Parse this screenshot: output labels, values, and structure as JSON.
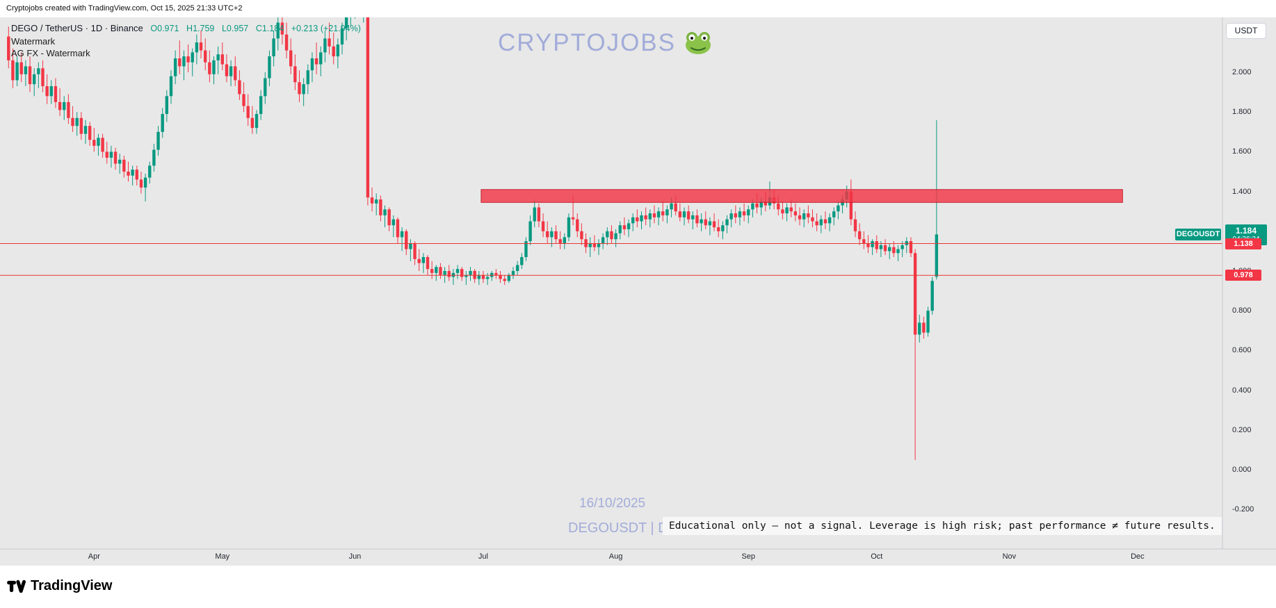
{
  "page": {
    "top_caption": "Cryptojobs created with TradingView.com, Oct 15, 2025 21:33 UTC+2",
    "bottom_brand": "TradingView"
  },
  "legend": {
    "symbol": "DEGO / TetherUS · 1D · Binance",
    "open": "O0.971",
    "high": "H1.759",
    "low": "L0.957",
    "close": "C1.184",
    "change": "+0.213 (+21.94%)"
  },
  "watermarks": {
    "line1": "Watermark",
    "line2": "AG FX - Watermark",
    "center_title": "CRYPTOJOBS",
    "date": "16/10/2025",
    "symbol_label": "DEGOUSDT | D"
  },
  "axis_button": {
    "label": "USDT"
  },
  "badges": {
    "symbol": "DEGOUSDT",
    "last_price": "1.184",
    "countdown": "04:26:24",
    "level1": "1.138",
    "level2": "0.978"
  },
  "banner": {
    "text": "Educational only — not a signal. Leverage is high risk; past performance ≠ future results."
  },
  "colors": {
    "up": "#089981",
    "down": "#f23645",
    "level_line": "#e53935",
    "zone_fill": "rgba(242,54,69,0.82)",
    "zone_border": "rgba(190,25,38,0.9)",
    "watermark": "rgba(103,122,204,0.55)",
    "badge_green": "#089981",
    "badge_red": "#f23645",
    "chart_bg": "#e8e8e8"
  },
  "chart_data": {
    "type": "candlestick",
    "title": "DEGO / TetherUS · 1D · Binance",
    "symbol": "DEGOUSDT",
    "exchange": "Binance",
    "interval": "1D",
    "quote_currency": "USDT",
    "start_date": "2025-03-12",
    "last": {
      "open": 0.971,
      "high": 1.759,
      "low": 0.957,
      "close": 1.184,
      "change": "+0.213",
      "change_pct": "+21.94%"
    },
    "y_axis": {
      "range": [
        -0.32,
        2.27
      ],
      "ticks": [
        {
          "v": 2.0,
          "label": "2.000"
        },
        {
          "v": 1.8,
          "label": "1.800"
        },
        {
          "v": 1.6,
          "label": "1.600"
        },
        {
          "v": 1.4,
          "label": "1.400"
        },
        {
          "v": 1.2,
          "label": "1.200"
        },
        {
          "v": 1.0,
          "label": "1.000"
        },
        {
          "v": 0.8,
          "label": "0.800"
        },
        {
          "v": 0.6,
          "label": "0.600"
        },
        {
          "v": 0.4,
          "label": "0.400"
        },
        {
          "v": 0.2,
          "label": "0.200"
        },
        {
          "v": 0.0,
          "label": "0.000"
        },
        {
          "v": -0.2,
          "label": "-0.200"
        }
      ]
    },
    "x_axis": {
      "labels": [
        {
          "label": "Apr",
          "day": 20
        },
        {
          "label": "May",
          "day": 50
        },
        {
          "label": "Jun",
          "day": 81
        },
        {
          "label": "Jul",
          "day": 111
        },
        {
          "label": "Aug",
          "day": 142
        },
        {
          "label": "Sep",
          "day": 173
        },
        {
          "label": "Oct",
          "day": 203
        },
        {
          "label": "Nov",
          "day": 234
        },
        {
          "label": "Dec",
          "day": 264
        }
      ]
    },
    "levels": [
      {
        "label": "1.138",
        "price": 1.138
      },
      {
        "label": "0.978",
        "price": 0.978
      }
    ],
    "zone": {
      "top": 1.41,
      "bottom": 1.345,
      "from_day": 111,
      "to_day": 261
    },
    "candles": [
      [
        2.18,
        2.23,
        2.02,
        2.06
      ],
      [
        2.06,
        2.12,
        1.92,
        1.96
      ],
      [
        1.96,
        2.08,
        1.93,
        2.05
      ],
      [
        2.05,
        2.1,
        1.95,
        1.99
      ],
      [
        1.99,
        2.06,
        1.93,
        2.03
      ],
      [
        2.03,
        2.08,
        1.9,
        1.94
      ],
      [
        1.94,
        2.02,
        1.88,
        1.99
      ],
      [
        1.99,
        2.05,
        1.92,
        2.02
      ],
      [
        2.02,
        2.06,
        1.9,
        1.93
      ],
      [
        1.93,
        1.99,
        1.84,
        1.88
      ],
      [
        1.88,
        1.96,
        1.84,
        1.93
      ],
      [
        1.93,
        1.97,
        1.82,
        1.85
      ],
      [
        1.85,
        1.92,
        1.78,
        1.81
      ],
      [
        1.81,
        1.88,
        1.76,
        1.85
      ],
      [
        1.85,
        1.89,
        1.74,
        1.77
      ],
      [
        1.77,
        1.83,
        1.7,
        1.73
      ],
      [
        1.73,
        1.8,
        1.68,
        1.77
      ],
      [
        1.77,
        1.8,
        1.66,
        1.69
      ],
      [
        1.69,
        1.76,
        1.64,
        1.73
      ],
      [
        1.73,
        1.75,
        1.63,
        1.66
      ],
      [
        1.66,
        1.72,
        1.6,
        1.63
      ],
      [
        1.63,
        1.69,
        1.58,
        1.67
      ],
      [
        1.67,
        1.69,
        1.57,
        1.6
      ],
      [
        1.6,
        1.65,
        1.54,
        1.57
      ],
      [
        1.57,
        1.63,
        1.52,
        1.6
      ],
      [
        1.6,
        1.62,
        1.51,
        1.54
      ],
      [
        1.54,
        1.59,
        1.49,
        1.56
      ],
      [
        1.56,
        1.58,
        1.47,
        1.5
      ],
      [
        1.5,
        1.55,
        1.45,
        1.48
      ],
      [
        1.48,
        1.53,
        1.43,
        1.51
      ],
      [
        1.51,
        1.53,
        1.43,
        1.46
      ],
      [
        1.46,
        1.5,
        1.39,
        1.42
      ],
      [
        1.42,
        1.49,
        1.35,
        1.47
      ],
      [
        1.47,
        1.55,
        1.44,
        1.53
      ],
      [
        1.53,
        1.64,
        1.5,
        1.61
      ],
      [
        1.61,
        1.73,
        1.58,
        1.7
      ],
      [
        1.7,
        1.82,
        1.67,
        1.79
      ],
      [
        1.79,
        1.91,
        1.75,
        1.88
      ],
      [
        1.88,
        2.01,
        1.84,
        1.98
      ],
      [
        1.98,
        2.11,
        1.94,
        2.07
      ],
      [
        2.07,
        2.16,
        1.99,
        2.03
      ],
      [
        2.03,
        2.11,
        1.96,
        2.08
      ],
      [
        2.08,
        2.14,
        2.0,
        2.05
      ],
      [
        2.05,
        2.12,
        1.98,
        2.1
      ],
      [
        2.1,
        2.19,
        2.04,
        2.15
      ],
      [
        2.15,
        2.21,
        2.07,
        2.11
      ],
      [
        2.11,
        2.17,
        2.01,
        2.05
      ],
      [
        2.05,
        2.11,
        1.95,
        1.99
      ],
      [
        1.99,
        2.08,
        1.94,
        2.06
      ],
      [
        2.06,
        2.13,
        1.99,
        2.09
      ],
      [
        2.09,
        2.15,
        2.01,
        2.04
      ],
      [
        2.04,
        2.09,
        1.95,
        1.98
      ],
      [
        1.98,
        2.06,
        1.93,
        2.03
      ],
      [
        2.03,
        2.08,
        1.93,
        1.96
      ],
      [
        1.96,
        2.01,
        1.86,
        1.89
      ],
      [
        1.89,
        1.95,
        1.8,
        1.83
      ],
      [
        1.83,
        1.89,
        1.73,
        1.77
      ],
      [
        1.77,
        1.83,
        1.69,
        1.72
      ],
      [
        1.72,
        1.81,
        1.69,
        1.79
      ],
      [
        1.79,
        1.91,
        1.76,
        1.88
      ],
      [
        1.88,
        2.0,
        1.84,
        1.97
      ],
      [
        1.97,
        2.11,
        1.93,
        2.08
      ],
      [
        2.08,
        2.21,
        2.03,
        2.17
      ],
      [
        2.17,
        2.29,
        2.11,
        2.25
      ],
      [
        2.25,
        2.32,
        2.14,
        2.19
      ],
      [
        2.19,
        2.25,
        2.07,
        2.11
      ],
      [
        2.11,
        2.17,
        1.99,
        2.03
      ],
      [
        2.03,
        2.09,
        1.91,
        1.95
      ],
      [
        1.95,
        2.01,
        1.85,
        1.89
      ],
      [
        1.89,
        1.97,
        1.83,
        1.94
      ],
      [
        1.94,
        2.04,
        1.89,
        2.01
      ],
      [
        2.01,
        2.1,
        1.95,
        2.07
      ],
      [
        2.07,
        2.15,
        1.99,
        2.04
      ],
      [
        2.04,
        2.13,
        1.98,
        2.1
      ],
      [
        2.1,
        2.21,
        2.05,
        2.17
      ],
      [
        2.17,
        2.25,
        2.09,
        2.13
      ],
      [
        2.13,
        2.2,
        2.04,
        2.08
      ],
      [
        2.08,
        2.17,
        2.02,
        2.14
      ],
      [
        2.14,
        2.25,
        2.09,
        2.22
      ],
      [
        2.22,
        2.32,
        2.16,
        2.29
      ],
      [
        2.29,
        2.39,
        2.23,
        2.35
      ],
      [
        2.35,
        2.43,
        2.27,
        2.39
      ],
      [
        2.39,
        2.45,
        2.29,
        2.33
      ],
      [
        2.33,
        2.41,
        2.25,
        2.37
      ],
      [
        2.37,
        2.49,
        1.33,
        1.37
      ],
      [
        1.37,
        1.42,
        1.3,
        1.34
      ],
      [
        1.34,
        1.39,
        1.28,
        1.36
      ],
      [
        1.36,
        1.38,
        1.25,
        1.28
      ],
      [
        1.28,
        1.33,
        1.22,
        1.31
      ],
      [
        1.31,
        1.32,
        1.2,
        1.23
      ],
      [
        1.23,
        1.28,
        1.17,
        1.26
      ],
      [
        1.26,
        1.27,
        1.14,
        1.17
      ],
      [
        1.17,
        1.22,
        1.1,
        1.2
      ],
      [
        1.2,
        1.21,
        1.08,
        1.11
      ],
      [
        1.11,
        1.16,
        1.05,
        1.14
      ],
      [
        1.14,
        1.15,
        1.03,
        1.06
      ],
      [
        1.06,
        1.11,
        1.0,
        1.04
      ],
      [
        1.04,
        1.09,
        0.99,
        1.07
      ],
      [
        1.07,
        1.08,
        0.98,
        1.01
      ],
      [
        1.01,
        1.05,
        0.96,
        0.99
      ],
      [
        0.99,
        1.03,
        0.95,
        1.02
      ],
      [
        1.02,
        1.04,
        0.96,
        0.98
      ],
      [
        0.98,
        1.02,
        0.94,
        1.0
      ],
      [
        1.0,
        1.03,
        0.95,
        0.97
      ],
      [
        0.97,
        1.01,
        0.93,
        0.99
      ],
      [
        0.99,
        1.03,
        0.96,
        1.01
      ],
      [
        1.01,
        1.02,
        0.95,
        0.97
      ],
      [
        0.97,
        1.0,
        0.93,
        0.98
      ],
      [
        0.98,
        1.02,
        0.95,
        1.0
      ],
      [
        1.0,
        1.01,
        0.94,
        0.96
      ],
      [
        0.96,
        1.0,
        0.93,
        0.98
      ],
      [
        0.98,
        1.0,
        0.94,
        0.96
      ],
      [
        0.96,
        0.99,
        0.93,
        0.97
      ],
      [
        0.97,
        1.0,
        0.95,
        0.99
      ],
      [
        0.99,
        1.01,
        0.96,
        0.98
      ],
      [
        0.98,
        1.0,
        0.94,
        0.96
      ],
      [
        0.96,
        0.98,
        0.93,
        0.95
      ],
      [
        0.95,
        0.99,
        0.94,
        0.98
      ],
      [
        0.98,
        1.02,
        0.96,
        1.0
      ],
      [
        1.0,
        1.05,
        0.98,
        1.03
      ],
      [
        1.03,
        1.09,
        1.01,
        1.07
      ],
      [
        1.07,
        1.17,
        1.05,
        1.15
      ],
      [
        1.15,
        1.28,
        1.13,
        1.25
      ],
      [
        1.25,
        1.36,
        1.22,
        1.32
      ],
      [
        1.32,
        1.34,
        1.22,
        1.25
      ],
      [
        1.25,
        1.29,
        1.17,
        1.2
      ],
      [
        1.2,
        1.25,
        1.14,
        1.17
      ],
      [
        1.17,
        1.22,
        1.12,
        1.2
      ],
      [
        1.2,
        1.23,
        1.14,
        1.16
      ],
      [
        1.16,
        1.2,
        1.11,
        1.14
      ],
      [
        1.14,
        1.19,
        1.11,
        1.17
      ],
      [
        1.17,
        1.29,
        1.15,
        1.27
      ],
      [
        1.27,
        1.38,
        1.23,
        1.26
      ],
      [
        1.26,
        1.29,
        1.17,
        1.2
      ],
      [
        1.2,
        1.24,
        1.13,
        1.16
      ],
      [
        1.16,
        1.19,
        1.09,
        1.12
      ],
      [
        1.12,
        1.17,
        1.07,
        1.14
      ],
      [
        1.14,
        1.18,
        1.1,
        1.12
      ],
      [
        1.12,
        1.16,
        1.08,
        1.14
      ],
      [
        1.14,
        1.19,
        1.11,
        1.17
      ],
      [
        1.17,
        1.22,
        1.13,
        1.2
      ],
      [
        1.2,
        1.23,
        1.14,
        1.16
      ],
      [
        1.16,
        1.21,
        1.12,
        1.19
      ],
      [
        1.19,
        1.25,
        1.16,
        1.23
      ],
      [
        1.23,
        1.27,
        1.18,
        1.21
      ],
      [
        1.21,
        1.26,
        1.17,
        1.24
      ],
      [
        1.24,
        1.29,
        1.2,
        1.27
      ],
      [
        1.27,
        1.31,
        1.22,
        1.25
      ],
      [
        1.25,
        1.3,
        1.21,
        1.28
      ],
      [
        1.28,
        1.32,
        1.23,
        1.26
      ],
      [
        1.26,
        1.31,
        1.22,
        1.29
      ],
      [
        1.29,
        1.33,
        1.24,
        1.27
      ],
      [
        1.27,
        1.32,
        1.23,
        1.3
      ],
      [
        1.3,
        1.35,
        1.25,
        1.28
      ],
      [
        1.28,
        1.33,
        1.24,
        1.31
      ],
      [
        1.31,
        1.37,
        1.27,
        1.34
      ],
      [
        1.34,
        1.38,
        1.28,
        1.3
      ],
      [
        1.3,
        1.34,
        1.25,
        1.27
      ],
      [
        1.27,
        1.32,
        1.23,
        1.3
      ],
      [
        1.3,
        1.33,
        1.24,
        1.26
      ],
      [
        1.26,
        1.3,
        1.21,
        1.28
      ],
      [
        1.28,
        1.31,
        1.22,
        1.24
      ],
      [
        1.24,
        1.29,
        1.2,
        1.26
      ],
      [
        1.26,
        1.3,
        1.21,
        1.23
      ],
      [
        1.23,
        1.27,
        1.18,
        1.25
      ],
      [
        1.25,
        1.29,
        1.2,
        1.22
      ],
      [
        1.22,
        1.26,
        1.17,
        1.2
      ],
      [
        1.2,
        1.25,
        1.16,
        1.23
      ],
      [
        1.23,
        1.28,
        1.19,
        1.26
      ],
      [
        1.26,
        1.31,
        1.22,
        1.29
      ],
      [
        1.29,
        1.33,
        1.24,
        1.27
      ],
      [
        1.27,
        1.32,
        1.23,
        1.3
      ],
      [
        1.3,
        1.34,
        1.25,
        1.28
      ],
      [
        1.28,
        1.33,
        1.24,
        1.31
      ],
      [
        1.31,
        1.36,
        1.27,
        1.34
      ],
      [
        1.34,
        1.39,
        1.29,
        1.32
      ],
      [
        1.32,
        1.37,
        1.28,
        1.35
      ],
      [
        1.35,
        1.4,
        1.3,
        1.33
      ],
      [
        1.33,
        1.45,
        1.31,
        1.37
      ],
      [
        1.37,
        1.41,
        1.31,
        1.34
      ],
      [
        1.34,
        1.38,
        1.28,
        1.31
      ],
      [
        1.31,
        1.35,
        1.26,
        1.29
      ],
      [
        1.29,
        1.34,
        1.25,
        1.32
      ],
      [
        1.32,
        1.36,
        1.27,
        1.3
      ],
      [
        1.3,
        1.34,
        1.25,
        1.28
      ],
      [
        1.28,
        1.32,
        1.23,
        1.26
      ],
      [
        1.26,
        1.31,
        1.22,
        1.29
      ],
      [
        1.29,
        1.33,
        1.24,
        1.27
      ],
      [
        1.27,
        1.31,
        1.22,
        1.25
      ],
      [
        1.25,
        1.29,
        1.2,
        1.23
      ],
      [
        1.23,
        1.28,
        1.19,
        1.26
      ],
      [
        1.26,
        1.3,
        1.21,
        1.24
      ],
      [
        1.24,
        1.29,
        1.2,
        1.27
      ],
      [
        1.27,
        1.32,
        1.23,
        1.3
      ],
      [
        1.3,
        1.35,
        1.26,
        1.33
      ],
      [
        1.33,
        1.38,
        1.29,
        1.36
      ],
      [
        1.36,
        1.43,
        1.32,
        1.4
      ],
      [
        1.4,
        1.46,
        1.23,
        1.26
      ],
      [
        1.26,
        1.3,
        1.17,
        1.2
      ],
      [
        1.2,
        1.24,
        1.13,
        1.16
      ],
      [
        1.16,
        1.2,
        1.11,
        1.14
      ],
      [
        1.14,
        1.18,
        1.09,
        1.12
      ],
      [
        1.12,
        1.16,
        1.08,
        1.15
      ],
      [
        1.15,
        1.18,
        1.09,
        1.11
      ],
      [
        1.11,
        1.15,
        1.07,
        1.13
      ],
      [
        1.13,
        1.16,
        1.08,
        1.1
      ],
      [
        1.1,
        1.14,
        1.06,
        1.12
      ],
      [
        1.12,
        1.15,
        1.07,
        1.09
      ],
      [
        1.09,
        1.13,
        1.05,
        1.11
      ],
      [
        1.11,
        1.15,
        1.07,
        1.13
      ],
      [
        1.13,
        1.17,
        1.09,
        1.15
      ],
      [
        1.15,
        1.17,
        1.07,
        1.09
      ],
      [
        1.09,
        1.11,
        0.05,
        0.68
      ],
      [
        0.68,
        0.78,
        0.64,
        0.74
      ],
      [
        0.74,
        0.77,
        0.66,
        0.69
      ],
      [
        0.69,
        0.82,
        0.67,
        0.8
      ],
      [
        0.8,
        0.97,
        0.78,
        0.95
      ],
      [
        0.971,
        1.759,
        0.957,
        1.184
      ]
    ]
  }
}
